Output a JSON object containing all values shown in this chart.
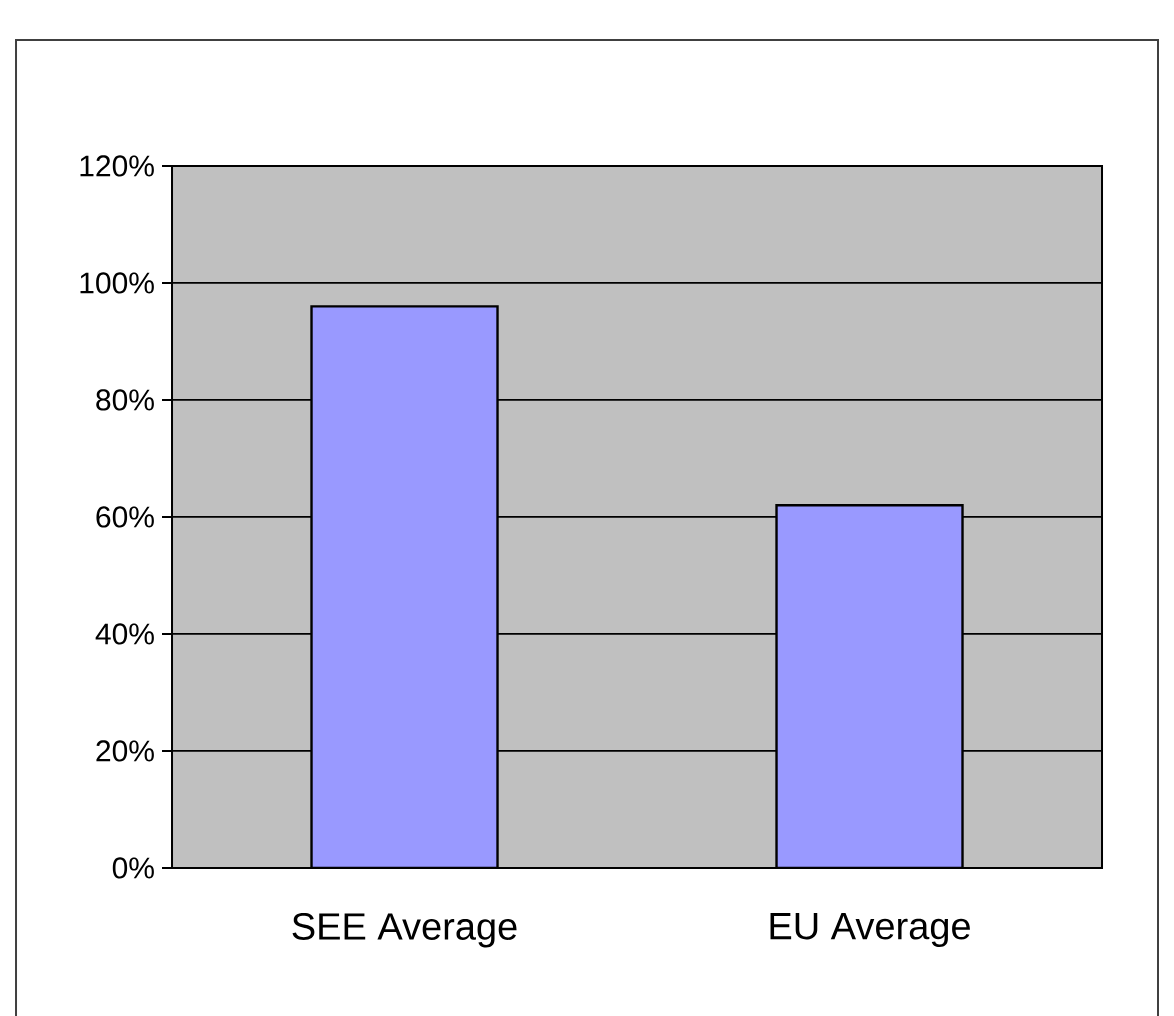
{
  "chart_data": {
    "type": "bar",
    "categories": [
      "SEE Average",
      "EU Average"
    ],
    "values": [
      96,
      62
    ],
    "color": "#9999ff",
    "ylim": [
      0,
      120
    ],
    "yticks": [
      {
        "value": 0,
        "label": "0%"
      },
      {
        "value": 20,
        "label": "20%"
      },
      {
        "value": 40,
        "label": "40%"
      },
      {
        "value": 60,
        "label": "60%"
      },
      {
        "value": 80,
        "label": "80%"
      },
      {
        "value": 100,
        "label": "100%"
      },
      {
        "value": 120,
        "label": "120%"
      }
    ],
    "grid": "y"
  }
}
